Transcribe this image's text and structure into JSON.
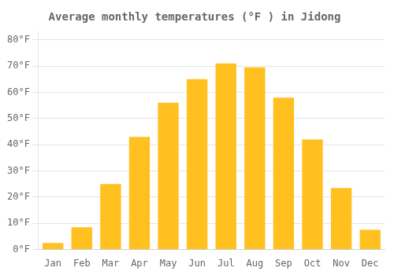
{
  "chart_data": {
    "type": "bar",
    "title": "Average monthly temperatures (°F ) in Jidong",
    "categories": [
      "Jan",
      "Feb",
      "Mar",
      "Apr",
      "May",
      "Jun",
      "Jul",
      "Aug",
      "Sep",
      "Oct",
      "Nov",
      "Dec"
    ],
    "values": [
      2.5,
      8.5,
      25,
      43,
      56,
      65,
      71,
      69.5,
      58,
      42,
      23.5,
      7.5
    ],
    "color": "#FFC020",
    "ylim": [
      0,
      83
    ],
    "yticks": [
      {
        "value": 0,
        "label": "0°F"
      },
      {
        "value": 10,
        "label": "10°F"
      },
      {
        "value": 20,
        "label": "20°F"
      },
      {
        "value": 30,
        "label": "30°F"
      },
      {
        "value": 40,
        "label": "40°F"
      },
      {
        "value": 50,
        "label": "50°F"
      },
      {
        "value": 60,
        "label": "60°F"
      },
      {
        "value": 70,
        "label": "70°F"
      },
      {
        "value": 80,
        "label": "80°F"
      }
    ],
    "grid": "y"
  }
}
